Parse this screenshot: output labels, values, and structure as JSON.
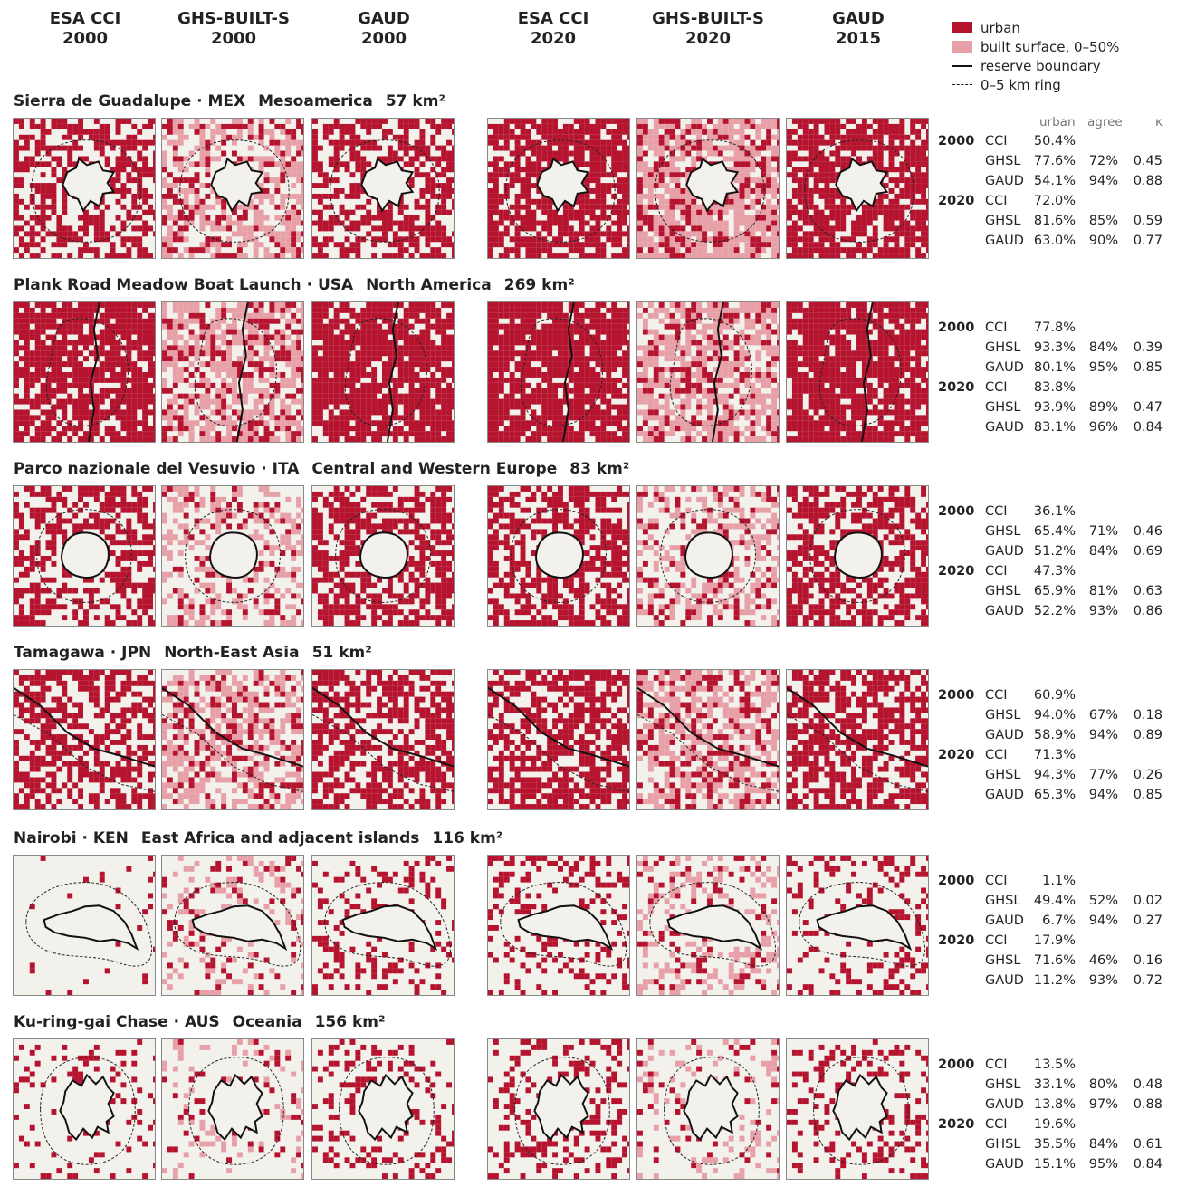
{
  "columns": [
    {
      "name": "ESA CCI",
      "year": "2000"
    },
    {
      "name": "GHS-BUILT-S",
      "year": "2000"
    },
    {
      "name": "GAUD",
      "year": "2000"
    },
    {
      "name": "ESA CCI",
      "year": "2020"
    },
    {
      "name": "GHS-BUILT-S",
      "year": "2020"
    },
    {
      "name": "GAUD",
      "year": "2015"
    }
  ],
  "legend": {
    "urban": "urban",
    "built": "built surface, 0–50%",
    "boundary": "reserve boundary",
    "ring": "0–5 km ring"
  },
  "colors": {
    "urban": "#b5132e",
    "built_light": "#e8a0a8",
    "background": "#f3f1ec"
  },
  "stats_header": {
    "urban": "urban",
    "agree": "agree",
    "kappa": "κ"
  },
  "rows": [
    {
      "name": "Sierra de Guadalupe · MEX",
      "region": "Mesoamerica",
      "area": "57 km²",
      "density": [
        0.55,
        0.6,
        0.6,
        0.78,
        0.8,
        0.75
      ],
      "shape": "star",
      "stats": [
        {
          "year": "2000",
          "dataset": "CCI",
          "urban": "50.4%",
          "agree": "",
          "kappa": ""
        },
        {
          "year": "",
          "dataset": "GHSL",
          "urban": "77.6%",
          "agree": "72%",
          "kappa": "0.45"
        },
        {
          "year": "",
          "dataset": "GAUD",
          "urban": "54.1%",
          "agree": "94%",
          "kappa": "0.88"
        },
        {
          "year": "2020",
          "dataset": "CCI",
          "urban": "72.0%",
          "agree": "",
          "kappa": ""
        },
        {
          "year": "",
          "dataset": "GHSL",
          "urban": "81.6%",
          "agree": "85%",
          "kappa": "0.59"
        },
        {
          "year": "",
          "dataset": "GAUD",
          "urban": "63.0%",
          "agree": "90%",
          "kappa": "0.77"
        }
      ]
    },
    {
      "name": "Plank Road Meadow Boat Launch · USA",
      "region": "North America",
      "area": "269 km²",
      "density": [
        0.8,
        0.7,
        0.82,
        0.85,
        0.72,
        0.84
      ],
      "shape": "river",
      "stats": [
        {
          "year": "2000",
          "dataset": "CCI",
          "urban": "77.8%",
          "agree": "",
          "kappa": ""
        },
        {
          "year": "",
          "dataset": "GHSL",
          "urban": "93.3%",
          "agree": "84%",
          "kappa": "0.39"
        },
        {
          "year": "",
          "dataset": "GAUD",
          "urban": "80.1%",
          "agree": "95%",
          "kappa": "0.85"
        },
        {
          "year": "2020",
          "dataset": "CCI",
          "urban": "83.8%",
          "agree": "",
          "kappa": ""
        },
        {
          "year": "",
          "dataset": "GHSL",
          "urban": "93.9%",
          "agree": "89%",
          "kappa": "0.47"
        },
        {
          "year": "",
          "dataset": "GAUD",
          "urban": "83.1%",
          "agree": "96%",
          "kappa": "0.84"
        }
      ]
    },
    {
      "name": "Parco nazionale del Vesuvio · ITA",
      "region": "Central and Western Europe",
      "area": "83 km²",
      "density": [
        0.5,
        0.45,
        0.6,
        0.6,
        0.5,
        0.62
      ],
      "shape": "circle",
      "stats": [
        {
          "year": "2000",
          "dataset": "CCI",
          "urban": "36.1%",
          "agree": "",
          "kappa": ""
        },
        {
          "year": "",
          "dataset": "GHSL",
          "urban": "65.4%",
          "agree": "71%",
          "kappa": "0.46"
        },
        {
          "year": "",
          "dataset": "GAUD",
          "urban": "51.2%",
          "agree": "84%",
          "kappa": "0.69"
        },
        {
          "year": "2020",
          "dataset": "CCI",
          "urban": "47.3%",
          "agree": "",
          "kappa": ""
        },
        {
          "year": "",
          "dataset": "GHSL",
          "urban": "65.9%",
          "agree": "81%",
          "kappa": "0.63"
        },
        {
          "year": "",
          "dataset": "GAUD",
          "urban": "52.2%",
          "agree": "93%",
          "kappa": "0.86"
        }
      ]
    },
    {
      "name": "Tamagawa · JPN",
      "region": "North-East Asia",
      "area": "51 km²",
      "density": [
        0.55,
        0.6,
        0.58,
        0.65,
        0.62,
        0.64
      ],
      "shape": "diagonal",
      "stats": [
        {
          "year": "2000",
          "dataset": "CCI",
          "urban": "60.9%",
          "agree": "",
          "kappa": ""
        },
        {
          "year": "",
          "dataset": "GHSL",
          "urban": "94.0%",
          "agree": "67%",
          "kappa": "0.18"
        },
        {
          "year": "",
          "dataset": "GAUD",
          "urban": "58.9%",
          "agree": "94%",
          "kappa": "0.89"
        },
        {
          "year": "2020",
          "dataset": "CCI",
          "urban": "71.3%",
          "agree": "",
          "kappa": ""
        },
        {
          "year": "",
          "dataset": "GHSL",
          "urban": "94.3%",
          "agree": "77%",
          "kappa": "0.26"
        },
        {
          "year": "",
          "dataset": "GAUD",
          "urban": "65.3%",
          "agree": "94%",
          "kappa": "0.85"
        }
      ]
    },
    {
      "name": "Nairobi · KEN",
      "region": "East Africa and adjacent islands",
      "area": "116 km²",
      "density": [
        0.04,
        0.3,
        0.22,
        0.3,
        0.35,
        0.25
      ],
      "shape": "blob",
      "stats": [
        {
          "year": "2000",
          "dataset": "CCI",
          "urban": "1.1%",
          "agree": "",
          "kappa": ""
        },
        {
          "year": "",
          "dataset": "GHSL",
          "urban": "49.4%",
          "agree": "52%",
          "kappa": "0.02"
        },
        {
          "year": "",
          "dataset": "GAUD",
          "urban": "6.7%",
          "agree": "94%",
          "kappa": "0.27"
        },
        {
          "year": "2020",
          "dataset": "CCI",
          "urban": "17.9%",
          "agree": "",
          "kappa": ""
        },
        {
          "year": "",
          "dataset": "GHSL",
          "urban": "71.6%",
          "agree": "46%",
          "kappa": "0.16"
        },
        {
          "year": "",
          "dataset": "GAUD",
          "urban": "11.2%",
          "agree": "93%",
          "kappa": "0.72"
        }
      ]
    },
    {
      "name": "Ku-ring-gai Chase · AUS",
      "region": "Oceania",
      "area": "156 km²",
      "density": [
        0.15,
        0.2,
        0.2,
        0.25,
        0.22,
        0.25
      ],
      "shape": "jagged",
      "stats": [
        {
          "year": "2000",
          "dataset": "CCI",
          "urban": "13.5%",
          "agree": "",
          "kappa": ""
        },
        {
          "year": "",
          "dataset": "GHSL",
          "urban": "33.1%",
          "agree": "80%",
          "kappa": "0.48"
        },
        {
          "year": "",
          "dataset": "GAUD",
          "urban": "13.8%",
          "agree": "97%",
          "kappa": "0.88"
        },
        {
          "year": "2020",
          "dataset": "CCI",
          "urban": "19.6%",
          "agree": "",
          "kappa": ""
        },
        {
          "year": "",
          "dataset": "GHSL",
          "urban": "35.5%",
          "agree": "84%",
          "kappa": "0.61"
        },
        {
          "year": "",
          "dataset": "GAUD",
          "urban": "15.1%",
          "agree": "95%",
          "kappa": "0.84"
        }
      ]
    }
  ]
}
